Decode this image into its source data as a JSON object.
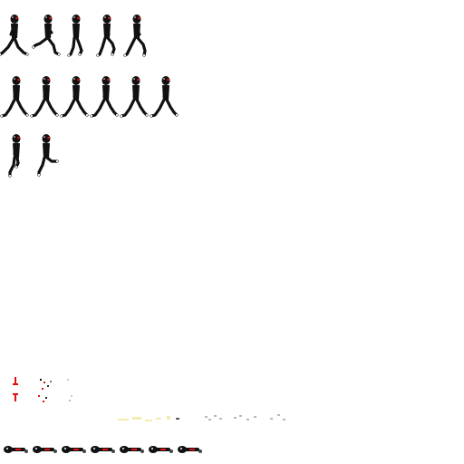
{
  "sheet": {
    "background": "#ffffff",
    "ink_color": "#111111",
    "accent_color": "#e01010",
    "highlight_color": "#ffffff",
    "spark_color": "#f2ecb0",
    "dust_color": "#b9b9b9"
  },
  "rows": [
    {
      "name": "run-cycle",
      "frames": [
        {
          "pose": "leap-left"
        },
        {
          "pose": "crouch-leap"
        },
        {
          "pose": "upright-step"
        },
        {
          "pose": "stride"
        },
        {
          "pose": "stride-wide"
        }
      ]
    },
    {
      "name": "walk-cycle",
      "frames": [
        {
          "pose": "walk"
        },
        {
          "pose": "walk"
        },
        {
          "pose": "walk"
        },
        {
          "pose": "walk"
        },
        {
          "pose": "walk"
        },
        {
          "pose": "walk"
        }
      ]
    },
    {
      "name": "jump-cycle",
      "frames": [
        {
          "pose": "tuck"
        },
        {
          "pose": "tuck-kick"
        }
      ]
    }
  ],
  "effects": {
    "red_markers": 2,
    "debris_clusters": 2,
    "spark_trail": true,
    "dust_trail": true
  },
  "body_parts_count": 7
}
